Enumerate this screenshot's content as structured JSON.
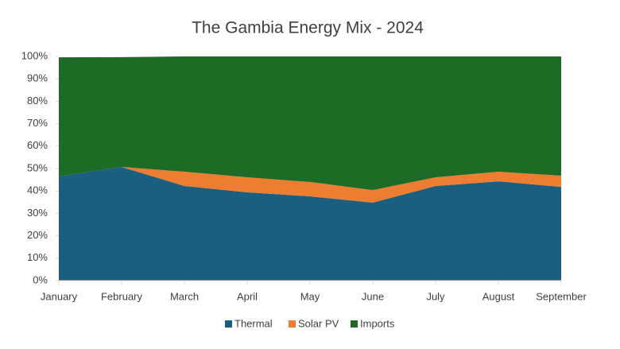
{
  "chart_data": {
    "type": "area",
    "stacked": true,
    "title": "The Gambia Energy Mix - 2024",
    "categories": [
      "January",
      "February",
      "March",
      "April",
      "May",
      "June",
      "July",
      "August",
      "September"
    ],
    "series": [
      {
        "name": "Thermal",
        "color": "#1a5e80",
        "values": [
          46.5,
          50.7,
          42.2,
          39.4,
          37.6,
          34.8,
          42.2,
          44.3,
          41.8
        ]
      },
      {
        "name": "Solar PV",
        "color": "#ed7d31",
        "values": [
          0,
          0,
          6.4,
          6.7,
          6.4,
          5.6,
          3.9,
          4.3,
          5.0
        ]
      },
      {
        "name": "Imports",
        "color": "#1e6b27",
        "values": [
          53.1,
          49.0,
          51.4,
          53.9,
          56.0,
          59.6,
          53.9,
          51.4,
          53.2
        ]
      }
    ],
    "ylim": [
      0,
      100
    ],
    "yticks": [
      {
        "value": 0,
        "label": "0%"
      },
      {
        "value": 10,
        "label": "10%"
      },
      {
        "value": 20,
        "label": "20%"
      },
      {
        "value": 30,
        "label": "30%"
      },
      {
        "value": 40,
        "label": "40%"
      },
      {
        "value": 50,
        "label": "50%"
      },
      {
        "value": 60,
        "label": "60%"
      },
      {
        "value": 70,
        "label": "70%"
      },
      {
        "value": 80,
        "label": "80%"
      },
      {
        "value": 90,
        "label": "90%"
      },
      {
        "value": 100,
        "label": "100%"
      }
    ],
    "legend": "bottom"
  }
}
